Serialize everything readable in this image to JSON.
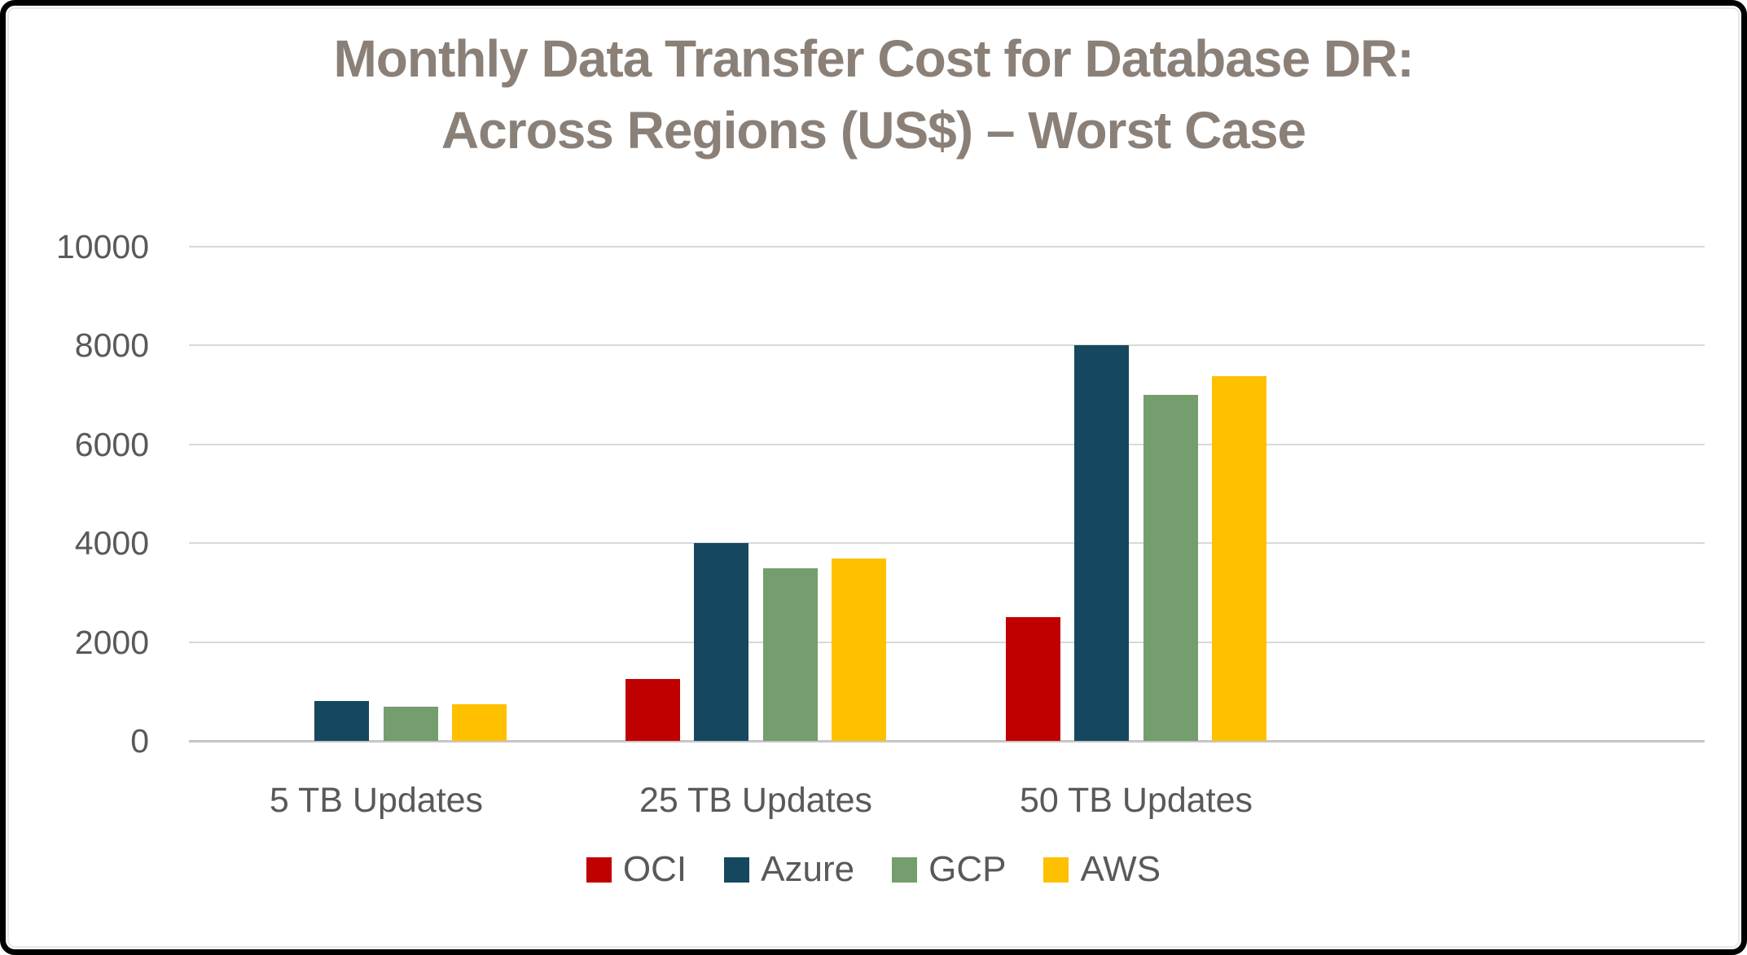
{
  "page": {
    "background_color": "#FFFFFF",
    "frame_color": "#000000"
  },
  "title": {
    "line1": "Monthly Data Transfer Cost for Database DR:",
    "line2": "Across Regions (US$) – Worst Case",
    "color": "#8A8077"
  },
  "chart_data": {
    "type": "bar",
    "title": "Monthly Data Transfer Cost for Database DR: Across Regions (US$) – Worst Case",
    "categories": [
      "5 TB Updates",
      "25 TB Updates",
      "50 TB Updates"
    ],
    "series": [
      {
        "name": "OCI",
        "color": "#C00000",
        "values": [
          0,
          1250,
          2500
        ]
      },
      {
        "name": "Azure",
        "color": "#15485F",
        "values": [
          800,
          4000,
          8000
        ]
      },
      {
        "name": "GCP",
        "color": "#749E6D",
        "values": [
          700,
          3500,
          7000
        ]
      },
      {
        "name": "AWS",
        "color": "#FFC000",
        "values": [
          737,
          3686,
          7373
        ]
      }
    ],
    "xlabel": "",
    "ylabel": "",
    "ylim": [
      0,
      10000
    ],
    "ytick_interval": 2000,
    "yticks": [
      "0",
      "2000",
      "4000",
      "6000",
      "8000",
      "10000"
    ],
    "grid": "horizontal-only",
    "gridline_color": "#D9D9D9",
    "axis_label_color": "#595959",
    "legend_position": "bottom",
    "legend": [
      "OCI",
      "Azure",
      "GCP",
      "AWS"
    ]
  }
}
